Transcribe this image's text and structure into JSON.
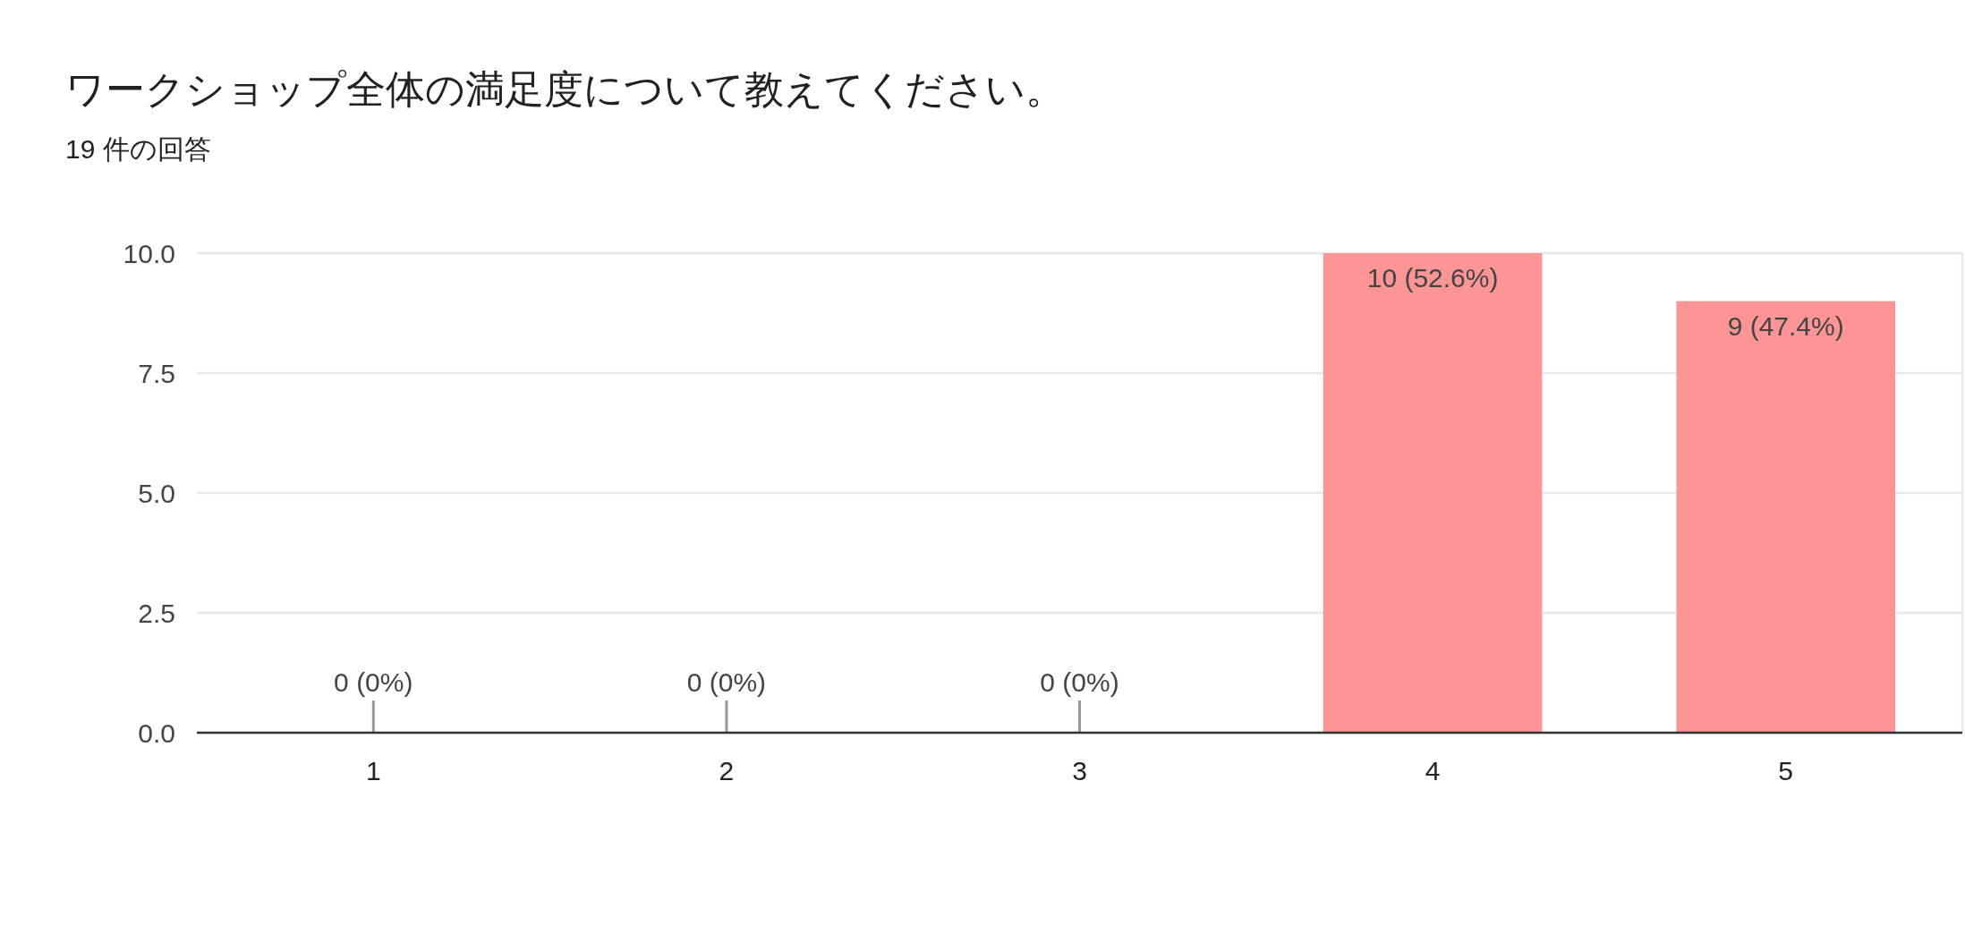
{
  "chart_data": {
    "type": "bar",
    "title": "ワークショップ全体の満足度について教えてください。",
    "subtitle": "19 件の回答",
    "categories": [
      "1",
      "2",
      "3",
      "4",
      "5"
    ],
    "values": [
      0,
      0,
      0,
      10,
      9
    ],
    "value_labels": [
      "0 (0%)",
      "0 (0%)",
      "0 (0%)",
      "10 (52.6%)",
      "9 (47.4%)"
    ],
    "color": "#fd9597",
    "ylim": [
      0,
      10
    ],
    "yticks": [
      {
        "value": 0,
        "label": "0.0"
      },
      {
        "value": 2.5,
        "label": "2.5"
      },
      {
        "value": 5,
        "label": "5.0"
      },
      {
        "value": 7.5,
        "label": "7.5"
      },
      {
        "value": 10,
        "label": "10.0"
      }
    ],
    "grid": "y"
  }
}
